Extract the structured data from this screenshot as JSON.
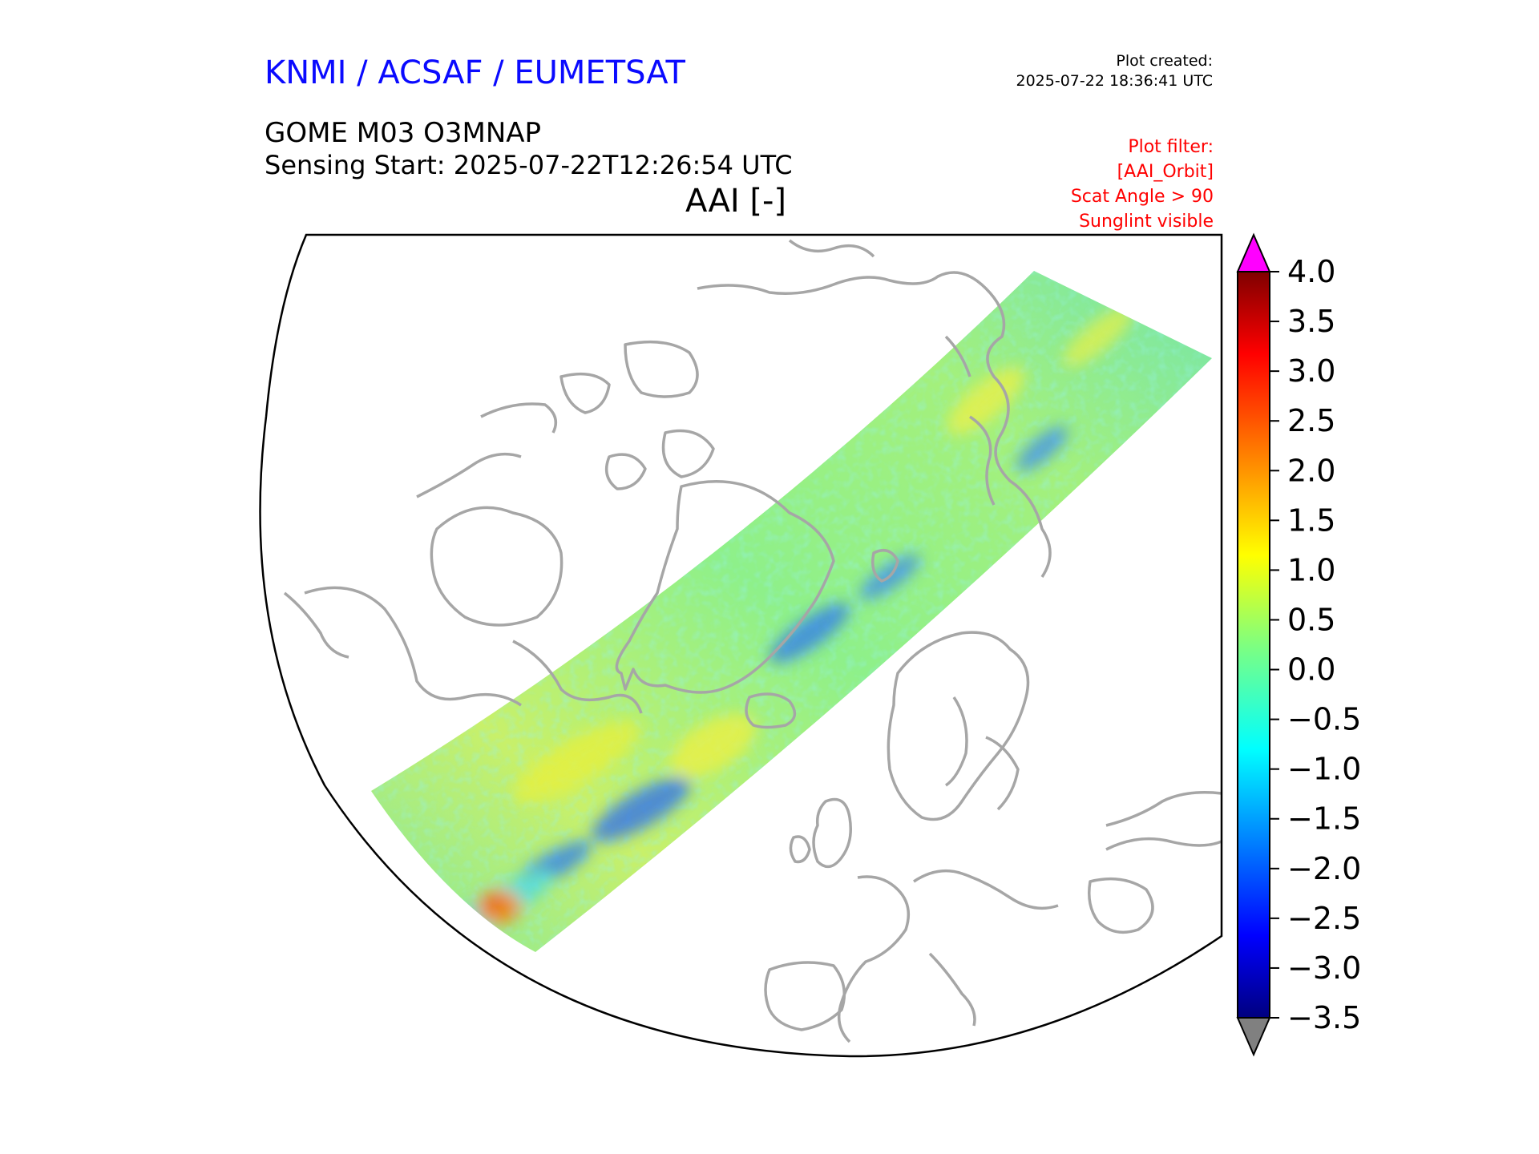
{
  "header": {
    "org_title": "KNMI / ACSAF / EUMETSAT",
    "created_label": "Plot created:",
    "created_time": "2025-07-22 18:36:41 UTC",
    "product_title": "GOME M03 O3MNAP",
    "sensing_start": "Sensing Start: 2025-07-22T12:26:54 UTC",
    "variable_title": "AAI [-]"
  },
  "filter": {
    "lines": [
      "Plot filter:",
      "[AAI_Orbit]",
      "Scat Angle > 90",
      "Sunglint visible"
    ]
  },
  "colors": {
    "org_title": "#0a0aff",
    "filter_text": "#ff0000",
    "coastline": "#a6a6a6",
    "over_max": "#ff00ff",
    "under_min": "#808080"
  },
  "chart_data": {
    "type": "heatmap",
    "title": "AAI [-]",
    "projection": "north-polar stereographic",
    "colormap": "jet",
    "vmin": -3.5,
    "vmax": 4.0,
    "extend": "both",
    "colorbar_ticks": [
      "4.0",
      "3.5",
      "3.0",
      "2.5",
      "2.0",
      "1.5",
      "1.0",
      "0.5",
      "0.0",
      "−0.5",
      "−1.0",
      "−1.5",
      "−2.0",
      "−2.5",
      "−3.0",
      "−3.5"
    ],
    "swath_notes": "Orbit swath from North Atlantic across Greenland to the Arctic; values mostly -1 to 1.5, local high ~2.5 near southwest end"
  }
}
